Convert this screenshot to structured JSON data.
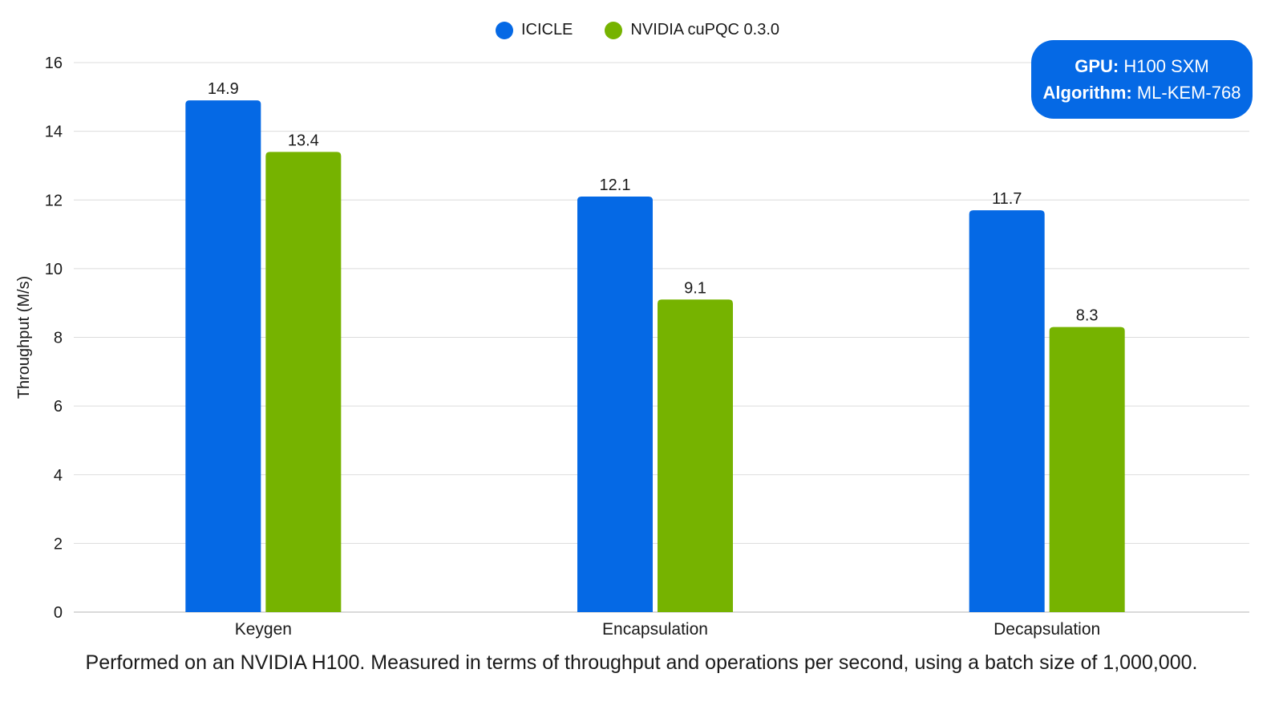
{
  "chart_data": {
    "type": "bar",
    "categories": [
      "Keygen",
      "Encapsulation",
      "Decapsulation"
    ],
    "series": [
      {
        "name": "ICICLE",
        "values": [
          14.9,
          12.1,
          11.7
        ],
        "color": "#0569E5"
      },
      {
        "name": "NVIDIA cuPQC 0.3.0",
        "values": [
          13.4,
          9.1,
          8.3
        ],
        "color": "#76B300"
      }
    ],
    "ylabel": "Throughput (M/s)",
    "ylim": [
      0,
      16
    ],
    "yticks": [
      0,
      2,
      4,
      6,
      8,
      10,
      12,
      14,
      16
    ],
    "grid": true,
    "legend_position": "top-center"
  },
  "info_box": {
    "gpu_label": "GPU:",
    "gpu_value": "H100 SXM",
    "algorithm_label": "Algorithm:",
    "algorithm_value": "ML-KEM-768",
    "color": "#0569E5"
  },
  "footnote": "Performed on an NVIDIA H100. Measured in terms of throughput and operations per second, using a batch size of 1,000,000."
}
